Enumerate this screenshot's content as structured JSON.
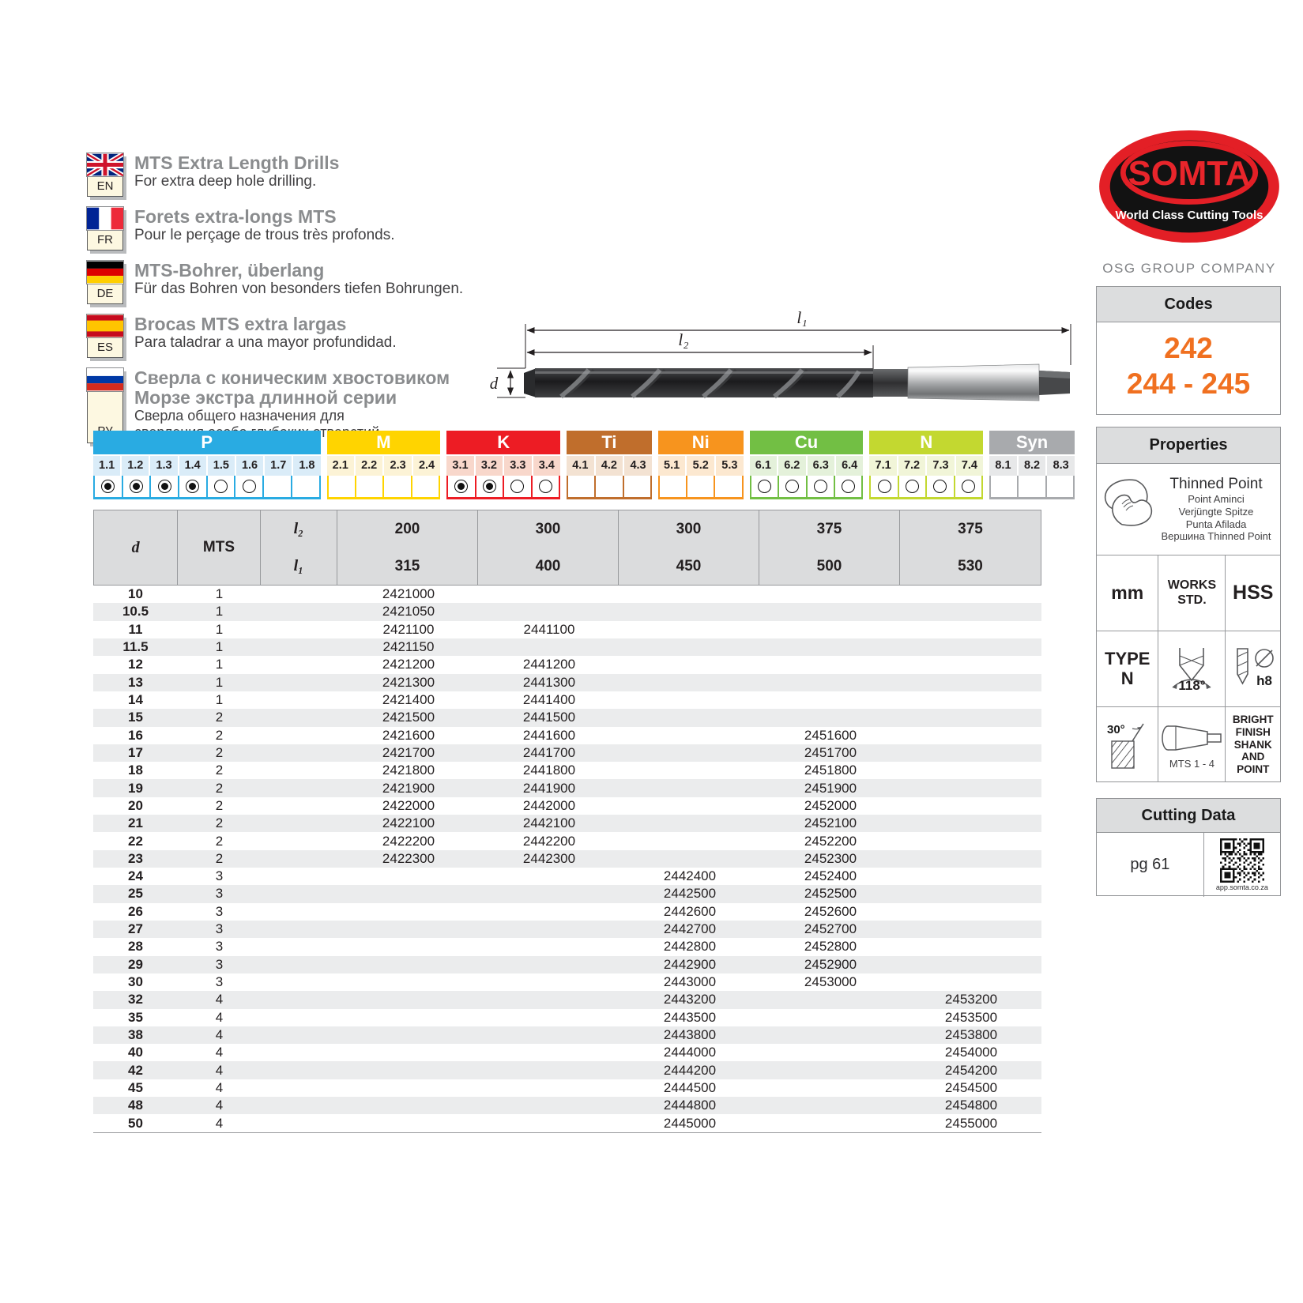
{
  "languages": [
    {
      "code": "EN",
      "title": "MTS Extra Length Drills",
      "subtitle": "For extra deep hole drilling."
    },
    {
      "code": "FR",
      "title": "Forets extra-longs MTS",
      "subtitle": "Pour le perçage de trous très profonds."
    },
    {
      "code": "DE",
      "title": "MTS-Bohrer, überlang",
      "subtitle": "Für das Bohren von besonders tiefen Bohrungen."
    },
    {
      "code": "ES",
      "title": "Brocas MTS extra largas",
      "subtitle": "Para taladrar a una mayor profundidad."
    },
    {
      "code": "РУ",
      "title": "Сверла с коническим хвостовиком",
      "title2": "Морзе экстра длинной серии",
      "subtitle": "Сверла общего назначения для",
      "subtitle2": "сверления особо глубоких отверстий."
    }
  ],
  "logo": {
    "brand": "SOMTA",
    "tagline": "World Class Cutting Tools",
    "company": "OSG GROUP COMPANY"
  },
  "codes_box": {
    "title": "Codes",
    "code_top": "242",
    "code_bottom": "244 - 245"
  },
  "diagram": {
    "l1_label": "l₁",
    "l2_label": "l₂",
    "d_label": "d"
  },
  "material_bar": {
    "groups": [
      {
        "name": "P",
        "color": "#29abe2",
        "tint": "#daecf8",
        "cells": [
          {
            "label": "1.1",
            "radio": "filled"
          },
          {
            "label": "1.2",
            "radio": "filled"
          },
          {
            "label": "1.3",
            "radio": "filled"
          },
          {
            "label": "1.4",
            "radio": "filled"
          },
          {
            "label": "1.5",
            "radio": "empty"
          },
          {
            "label": "1.6",
            "radio": "empty"
          },
          {
            "label": "1.7",
            "radio": "none"
          },
          {
            "label": "1.8",
            "radio": "none"
          }
        ]
      },
      {
        "name": "M",
        "color": "#ffd400",
        "tint": "#fcf3d6",
        "cells": [
          {
            "label": "2.1",
            "radio": "none"
          },
          {
            "label": "2.2",
            "radio": "none"
          },
          {
            "label": "2.3",
            "radio": "none"
          },
          {
            "label": "2.4",
            "radio": "none"
          }
        ]
      },
      {
        "name": "K",
        "color": "#ed1c24",
        "tint": "#f8d7cb",
        "cells": [
          {
            "label": "3.1",
            "radio": "filled"
          },
          {
            "label": "3.2",
            "radio": "filled"
          },
          {
            "label": "3.3",
            "radio": "empty"
          },
          {
            "label": "3.4",
            "radio": "empty"
          }
        ]
      },
      {
        "name": "Ti",
        "color": "#c06e2c",
        "tint": "#f3e2d2",
        "cells": [
          {
            "label": "4.1",
            "radio": "none"
          },
          {
            "label": "4.2",
            "radio": "none"
          },
          {
            "label": "4.3",
            "radio": "none"
          }
        ]
      },
      {
        "name": "Ni",
        "color": "#f7941e",
        "tint": "#fce8d0",
        "cells": [
          {
            "label": "5.1",
            "radio": "none"
          },
          {
            "label": "5.2",
            "radio": "none"
          },
          {
            "label": "5.3",
            "radio": "none"
          }
        ]
      },
      {
        "name": "Cu",
        "color": "#72bf44",
        "tint": "#e4f1da",
        "cells": [
          {
            "label": "6.1",
            "radio": "empty"
          },
          {
            "label": "6.2",
            "radio": "empty"
          },
          {
            "label": "6.3",
            "radio": "empty"
          },
          {
            "label": "6.4",
            "radio": "empty"
          }
        ]
      },
      {
        "name": "N",
        "color": "#c3d830",
        "tint": "#f1f5d8",
        "cells": [
          {
            "label": "7.1",
            "radio": "empty"
          },
          {
            "label": "7.2",
            "radio": "empty"
          },
          {
            "label": "7.3",
            "radio": "empty"
          },
          {
            "label": "7.4",
            "radio": "empty"
          }
        ]
      },
      {
        "name": "Syn",
        "color": "#a8aaad",
        "tint": "#e7e8e9",
        "cells": [
          {
            "label": "8.1",
            "radio": "none"
          },
          {
            "label": "8.2",
            "radio": "none"
          },
          {
            "label": "8.3",
            "radio": "none"
          }
        ]
      }
    ]
  },
  "table": {
    "headers": {
      "d": "d",
      "mts": "MTS",
      "l2": "l₂",
      "l1": "l₁"
    },
    "length_cols": [
      {
        "l2": "200",
        "l1": "315"
      },
      {
        "l2": "300",
        "l1": "400"
      },
      {
        "l2": "300",
        "l1": "450"
      },
      {
        "l2": "375",
        "l1": "500"
      },
      {
        "l2": "375",
        "l1": "530"
      }
    ],
    "rows": [
      {
        "d": "10",
        "mts": "1",
        "codes": [
          "2421000",
          "",
          "",
          "",
          ""
        ]
      },
      {
        "d": "10.5",
        "mts": "1",
        "codes": [
          "2421050",
          "",
          "",
          "",
          ""
        ]
      },
      {
        "d": "11",
        "mts": "1",
        "codes": [
          "2421100",
          "2441100",
          "",
          "",
          ""
        ]
      },
      {
        "d": "11.5",
        "mts": "1",
        "codes": [
          "2421150",
          "",
          "",
          "",
          ""
        ]
      },
      {
        "d": "12",
        "mts": "1",
        "codes": [
          "2421200",
          "2441200",
          "",
          "",
          ""
        ]
      },
      {
        "d": "13",
        "mts": "1",
        "codes": [
          "2421300",
          "2441300",
          "",
          "",
          ""
        ]
      },
      {
        "d": "14",
        "mts": "1",
        "codes": [
          "2421400",
          "2441400",
          "",
          "",
          ""
        ]
      },
      {
        "d": "15",
        "mts": "2",
        "codes": [
          "2421500",
          "2441500",
          "",
          "",
          ""
        ]
      },
      {
        "d": "16",
        "mts": "2",
        "codes": [
          "2421600",
          "2441600",
          "",
          "2451600",
          ""
        ]
      },
      {
        "d": "17",
        "mts": "2",
        "codes": [
          "2421700",
          "2441700",
          "",
          "2451700",
          ""
        ]
      },
      {
        "d": "18",
        "mts": "2",
        "codes": [
          "2421800",
          "2441800",
          "",
          "2451800",
          ""
        ]
      },
      {
        "d": "19",
        "mts": "2",
        "codes": [
          "2421900",
          "2441900",
          "",
          "2451900",
          ""
        ]
      },
      {
        "d": "20",
        "mts": "2",
        "codes": [
          "2422000",
          "2442000",
          "",
          "2452000",
          ""
        ]
      },
      {
        "d": "21",
        "mts": "2",
        "codes": [
          "2422100",
          "2442100",
          "",
          "2452100",
          ""
        ]
      },
      {
        "d": "22",
        "mts": "2",
        "codes": [
          "2422200",
          "2442200",
          "",
          "2452200",
          ""
        ]
      },
      {
        "d": "23",
        "mts": "2",
        "codes": [
          "2422300",
          "2442300",
          "",
          "2452300",
          ""
        ]
      },
      {
        "d": "24",
        "mts": "3",
        "codes": [
          "",
          "",
          "2442400",
          "2452400",
          ""
        ]
      },
      {
        "d": "25",
        "mts": "3",
        "codes": [
          "",
          "",
          "2442500",
          "2452500",
          ""
        ]
      },
      {
        "d": "26",
        "mts": "3",
        "codes": [
          "",
          "",
          "2442600",
          "2452600",
          ""
        ]
      },
      {
        "d": "27",
        "mts": "3",
        "codes": [
          "",
          "",
          "2442700",
          "2452700",
          ""
        ]
      },
      {
        "d": "28",
        "mts": "3",
        "codes": [
          "",
          "",
          "2442800",
          "2452800",
          ""
        ]
      },
      {
        "d": "29",
        "mts": "3",
        "codes": [
          "",
          "",
          "2442900",
          "2452900",
          ""
        ]
      },
      {
        "d": "30",
        "mts": "3",
        "codes": [
          "",
          "",
          "2443000",
          "2453000",
          ""
        ]
      },
      {
        "d": "32",
        "mts": "4",
        "codes": [
          "",
          "",
          "2443200",
          "",
          "2453200"
        ]
      },
      {
        "d": "35",
        "mts": "4",
        "codes": [
          "",
          "",
          "2443500",
          "",
          "2453500"
        ]
      },
      {
        "d": "38",
        "mts": "4",
        "codes": [
          "",
          "",
          "2443800",
          "",
          "2453800"
        ]
      },
      {
        "d": "40",
        "mts": "4",
        "codes": [
          "",
          "",
          "2444000",
          "",
          "2454000"
        ]
      },
      {
        "d": "42",
        "mts": "4",
        "codes": [
          "",
          "",
          "2444200",
          "",
          "2454200"
        ]
      },
      {
        "d": "45",
        "mts": "4",
        "codes": [
          "",
          "",
          "2444500",
          "",
          "2454500"
        ]
      },
      {
        "d": "48",
        "mts": "4",
        "codes": [
          "",
          "",
          "2444800",
          "",
          "2454800"
        ]
      },
      {
        "d": "50",
        "mts": "4",
        "codes": [
          "",
          "",
          "2445000",
          "",
          "2455000"
        ]
      }
    ]
  },
  "properties": {
    "title": "Properties",
    "thinned_point": {
      "main": "Thinned Point",
      "fr": "Point Aminci",
      "de": "Verjüngte Spitze",
      "es": "Punta Afilada",
      "ru": "Вершина Thinned Point"
    },
    "units": "mm",
    "works_std": "WORKS STD.",
    "material": "HSS",
    "type_label": "TYPE N",
    "point_angle": "118°",
    "tolerance": "h8",
    "helix_angle": "30°",
    "shank_range": "MTS 1 - 4",
    "finish": "BRIGHT FINISH SHANK AND POINT"
  },
  "cutting_data": {
    "title": "Cutting Data",
    "page_ref": "pg 61",
    "qr_caption": "app.somta.co.za"
  }
}
